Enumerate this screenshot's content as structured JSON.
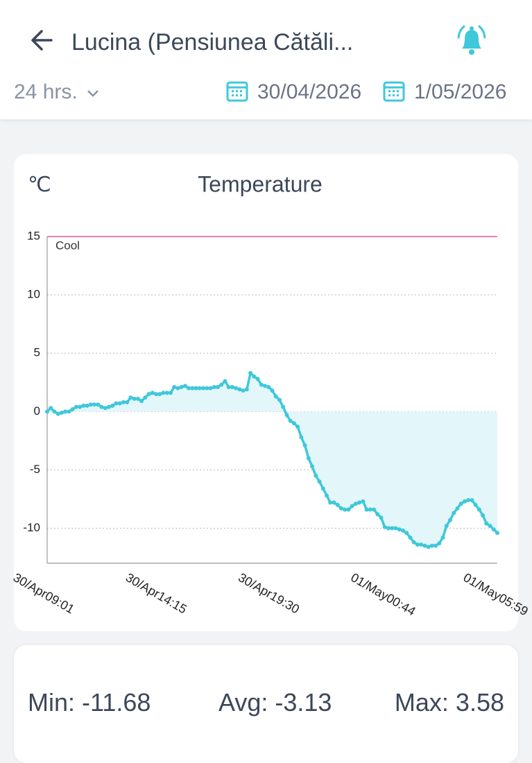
{
  "header": {
    "title": "Lucina (Pensiunea Cătăli...",
    "range": "24 hrs.",
    "start_date": "30/04/2026",
    "end_date": "1/05/2026"
  },
  "chart_data": {
    "type": "line",
    "title": "Temperature",
    "y_label": "℃",
    "categories": [
      "30/Apr09:01",
      null,
      null,
      null,
      null,
      null,
      null,
      null,
      null,
      null,
      null,
      null,
      null,
      null,
      null,
      null,
      null,
      null,
      null,
      null,
      null,
      null,
      null,
      null,
      null,
      null,
      null,
      null,
      null,
      null,
      null,
      "30/Apr14:15",
      null,
      null,
      null,
      null,
      null,
      null,
      null,
      null,
      null,
      null,
      null,
      null,
      null,
      null,
      null,
      null,
      null,
      null,
      null,
      null,
      null,
      null,
      null,
      null,
      null,
      null,
      null,
      null,
      null,
      null,
      "30/Apr19:30",
      null,
      null,
      null,
      null,
      null,
      null,
      null,
      null,
      null,
      null,
      null,
      null,
      null,
      null,
      null,
      null,
      null,
      null,
      null,
      null,
      null,
      null,
      null,
      null,
      null,
      null,
      null,
      null,
      null,
      null,
      "01/May00:44",
      null,
      null,
      null,
      null,
      null,
      null,
      null,
      null,
      null,
      null,
      null,
      null,
      null,
      null,
      null,
      null,
      null,
      null,
      null,
      null,
      null,
      null,
      null,
      null,
      null,
      null,
      null,
      null,
      null,
      null,
      "01/May05:59"
    ],
    "values": [
      0.0,
      0.3,
      0.0,
      -0.2,
      -0.1,
      0.0,
      0.0,
      0.2,
      0.4,
      0.4,
      0.5,
      0.5,
      0.6,
      0.6,
      0.6,
      0.4,
      0.3,
      0.4,
      0.5,
      0.7,
      0.7,
      0.8,
      0.8,
      1.2,
      1.1,
      1.1,
      0.9,
      1.2,
      1.5,
      1.6,
      1.5,
      1.5,
      1.6,
      1.6,
      1.6,
      2.1,
      2.0,
      2.1,
      2.2,
      2.0,
      2.0,
      2.0,
      2.0,
      2.0,
      2.0,
      2.0,
      2.1,
      2.1,
      2.3,
      2.6,
      2.1,
      2.1,
      2.0,
      1.9,
      1.8,
      1.9,
      3.3,
      3.0,
      2.8,
      2.3,
      2.2,
      2.1,
      1.8,
      1.3,
      1.0,
      0.4,
      -0.3,
      -0.8,
      -1.0,
      -1.3,
      -2.2,
      -2.9,
      -4.0,
      -4.7,
      -5.5,
      -6.0,
      -6.6,
      -7.2,
      -7.8,
      -7.8,
      -8.0,
      -8.3,
      -8.4,
      -8.4,
      -8.1,
      -7.9,
      -7.8,
      -7.7,
      -8.4,
      -8.4,
      -8.4,
      -8.8,
      -9.1,
      -9.9,
      -10.0,
      -10.0,
      -10.0,
      -10.1,
      -10.2,
      -10.4,
      -10.8,
      -11.2,
      -11.4,
      -11.4,
      -11.5,
      -11.6,
      -11.5,
      -11.5,
      -11.3,
      -10.8,
      -9.8,
      -9.3,
      -8.7,
      -8.3,
      -7.9,
      -7.7,
      -7.6,
      -7.6,
      -8.0,
      -8.4,
      -8.9,
      -9.6,
      -9.8,
      -10.1,
      -10.4
    ],
    "color": "#3ec8da",
    "area_color": "#e3f7fa",
    "ylim": [
      -13,
      15
    ],
    "yticks": [
      -10,
      -5,
      0,
      5,
      10,
      15
    ],
    "grid": true,
    "threshold": {
      "value": 15,
      "label": "Cool",
      "color": "#e6559a"
    }
  },
  "stats": {
    "min": {
      "label": "Min:",
      "value": -11.68
    },
    "avg": {
      "label": "Avg:",
      "value": -3.13
    },
    "max": {
      "label": "Max:",
      "value": 3.58
    }
  }
}
